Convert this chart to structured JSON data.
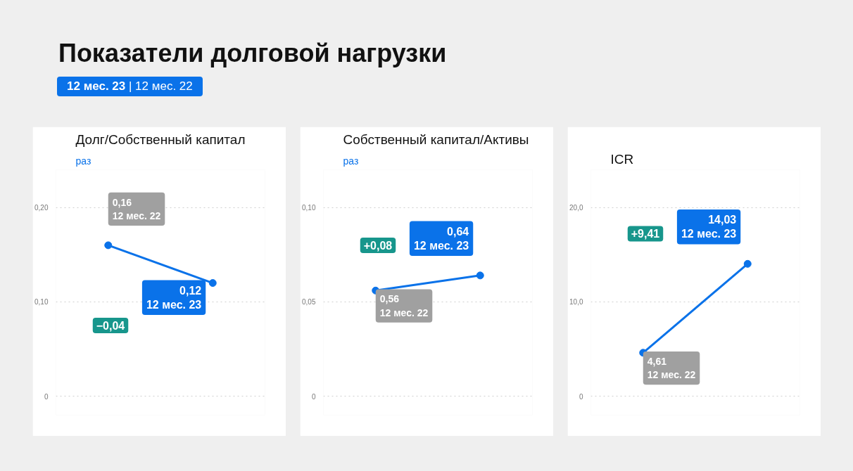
{
  "chart_data": [
    {
      "type": "line",
      "title": "Долг/Собственный капитал",
      "ylabel": "раз",
      "categories": [
        null,
        null
      ],
      "series": [
        {
          "color": "#0a72e9",
          "values": [
            0.16,
            0.12
          ]
        }
      ],
      "ylim": [
        -0.02,
        0.24
      ],
      "yticks": [
        0,
        {
          "value": 0.1,
          "label": "0,10"
        },
        {
          "value": 0.2,
          "label": "0,20"
        }
      ],
      "grid": "y",
      "tick_labels": "y",
      "marker": "circle",
      "line_style": "solid",
      "annotations": [
        "Показатели долговой нагрузки",
        "12 мес. 23 | 12 мес. 22",
        "0,16",
        "12 мес. 22",
        "0,12",
        "12 мес. 23",
        "−0,04"
      ]
    },
    {
      "type": "line",
      "title": "Собственный капитал/Активы",
      "ylabel": "раз",
      "categories": [
        null,
        null
      ],
      "series": [
        {
          "color": "#0a72e9",
          "values": [
            0.056,
            0.064
          ]
        }
      ],
      "ylim": [
        -0.01,
        0.12
      ],
      "yticks": [
        0,
        {
          "value": 0.05,
          "label": "0,05"
        },
        {
          "value": 0.1,
          "label": "0,10"
        }
      ],
      "grid": "y",
      "tick_labels": "y",
      "marker": "circle",
      "line_style": "solid",
      "annotations": [
        "0,56",
        "12 мес. 22",
        "0,64",
        "12 мес. 23",
        "+0,08"
      ]
    },
    {
      "type": "line",
      "title": "ICR",
      "categories": [
        null,
        null
      ],
      "series": [
        {
          "color": "#0a72e9",
          "values": [
            4.61,
            14.03
          ]
        }
      ],
      "ylim": [
        -2,
        24
      ],
      "yticks": [
        0,
        {
          "value": 10,
          "label": "10,0"
        },
        {
          "value": 20,
          "label": "20,0"
        }
      ],
      "grid": "y",
      "tick_labels": "y",
      "marker": "circle",
      "line_style": "solid",
      "annotations": [
        "4,61",
        "12 мес. 22",
        "14,03",
        "12 мес. 23",
        "+9,41"
      ]
    }
  ]
}
